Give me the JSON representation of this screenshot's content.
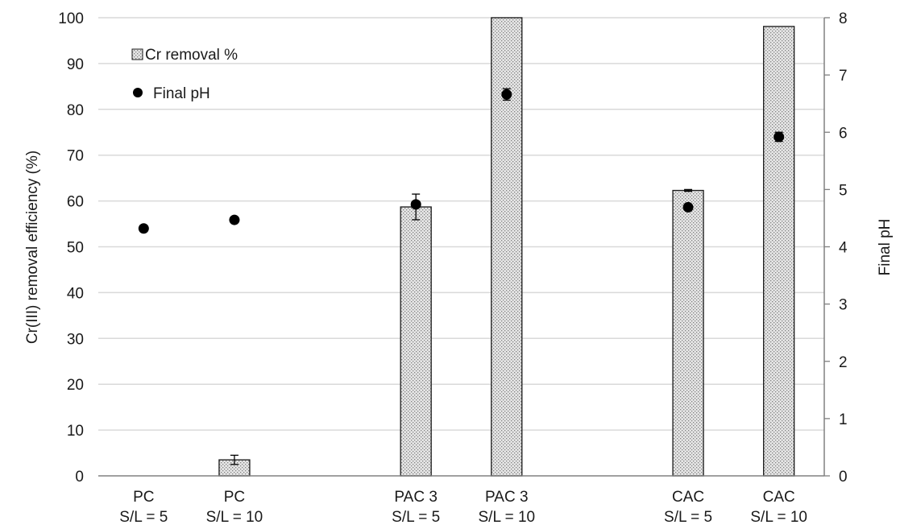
{
  "chart_data": {
    "type": "bar",
    "categories": [
      {
        "line1": "PC",
        "line2": "S/L = 5"
      },
      {
        "line1": "PC",
        "line2": "S/L = 10"
      },
      {
        "line1": "",
        "line2": ""
      },
      {
        "line1": "PAC 3",
        "line2": "S/L = 5"
      },
      {
        "line1": "PAC 3",
        "line2": "S/L = 10"
      },
      {
        "line1": "",
        "line2": ""
      },
      {
        "line1": "CAC",
        "line2": "S/L = 5"
      },
      {
        "line1": "CAC",
        "line2": "S/L = 10"
      }
    ],
    "series": [
      {
        "name": "Cr removal %",
        "kind": "bar",
        "axis": "left",
        "values": [
          0,
          3.5,
          null,
          58.7,
          100,
          null,
          62.3,
          98.1
        ],
        "errors": [
          0,
          1.0,
          null,
          2.8,
          0,
          null,
          0.2,
          0
        ]
      },
      {
        "name": "Final pH",
        "kind": "scatter",
        "axis": "right",
        "values": [
          4.32,
          4.47,
          null,
          4.74,
          6.66,
          null,
          4.69,
          5.92
        ],
        "errors": [
          0,
          0,
          null,
          0,
          0.1,
          null,
          0,
          0.08
        ]
      }
    ],
    "ylabel": "Cr(III) removal efficiency (%)",
    "y2label": "Final pH",
    "ylim": [
      0,
      100
    ],
    "y2lim": [
      0,
      8
    ],
    "yticks": [
      "0",
      "10",
      "20",
      "30",
      "40",
      "50",
      "60",
      "70",
      "80",
      "90",
      "100"
    ],
    "y2ticks": [
      "0",
      "1",
      "2",
      "3",
      "4",
      "5",
      "6",
      "7",
      "8"
    ],
    "grid": true,
    "legend_position": "top-left",
    "colors": {
      "bar_fill": "#e6e6e6",
      "bar_dots": "#808080",
      "bar_stroke": "#1a1a1a",
      "marker": "#000000",
      "grid": "#d9d9d9",
      "axis": "#808080"
    }
  }
}
